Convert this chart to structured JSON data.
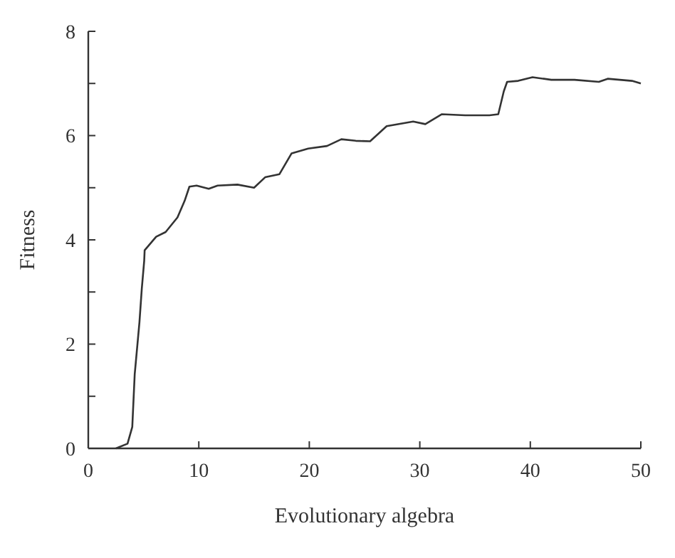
{
  "chart_data": {
    "type": "line",
    "xlabel": "Evolutionary algebra",
    "ylabel": "Fitness",
    "xlim": [
      0,
      50
    ],
    "ylim": [
      0,
      8
    ],
    "xticks": [
      0,
      10,
      20,
      30,
      40,
      50
    ],
    "yticks": [
      0,
      {
        "value": 1,
        "label": null
      },
      2,
      {
        "value": 3,
        "label": null
      },
      4,
      {
        "value": 5,
        "label": null
      },
      6,
      {
        "value": 7,
        "label": null
      },
      8
    ],
    "marker": "none",
    "line_style": "solid",
    "series": [
      {
        "color": "#333333",
        "x": [
          2.5,
          3.55,
          3.98,
          4.2,
          4.63,
          4.84,
          5.06,
          5.1,
          6.14,
          7.0,
          8.07,
          8.72,
          9.15,
          9.8,
          10.9,
          11.7,
          13.5,
          15.0,
          16.0,
          17.3,
          18.4,
          19.9,
          21.6,
          22.9,
          24.2,
          25.5,
          27.0,
          29.4,
          30.5,
          32.0,
          34.1,
          36.3,
          37.1,
          37.6,
          37.9,
          38.9,
          40.2,
          41.9,
          44.0,
          46.2,
          47.0,
          49.2,
          50.0
        ],
        "values": [
          0,
          0.09,
          0.41,
          1.42,
          2.42,
          3.06,
          3.6,
          3.8,
          4.06,
          4.15,
          4.43,
          4.75,
          5.02,
          5.04,
          4.98,
          5.04,
          5.06,
          5.0,
          5.2,
          5.26,
          5.66,
          5.75,
          5.8,
          5.93,
          5.9,
          5.89,
          6.18,
          6.27,
          6.22,
          6.41,
          6.39,
          6.39,
          6.41,
          6.85,
          7.03,
          7.05,
          7.12,
          7.07,
          7.07,
          7.03,
          7.09,
          7.05,
          7.0
        ]
      }
    ]
  }
}
